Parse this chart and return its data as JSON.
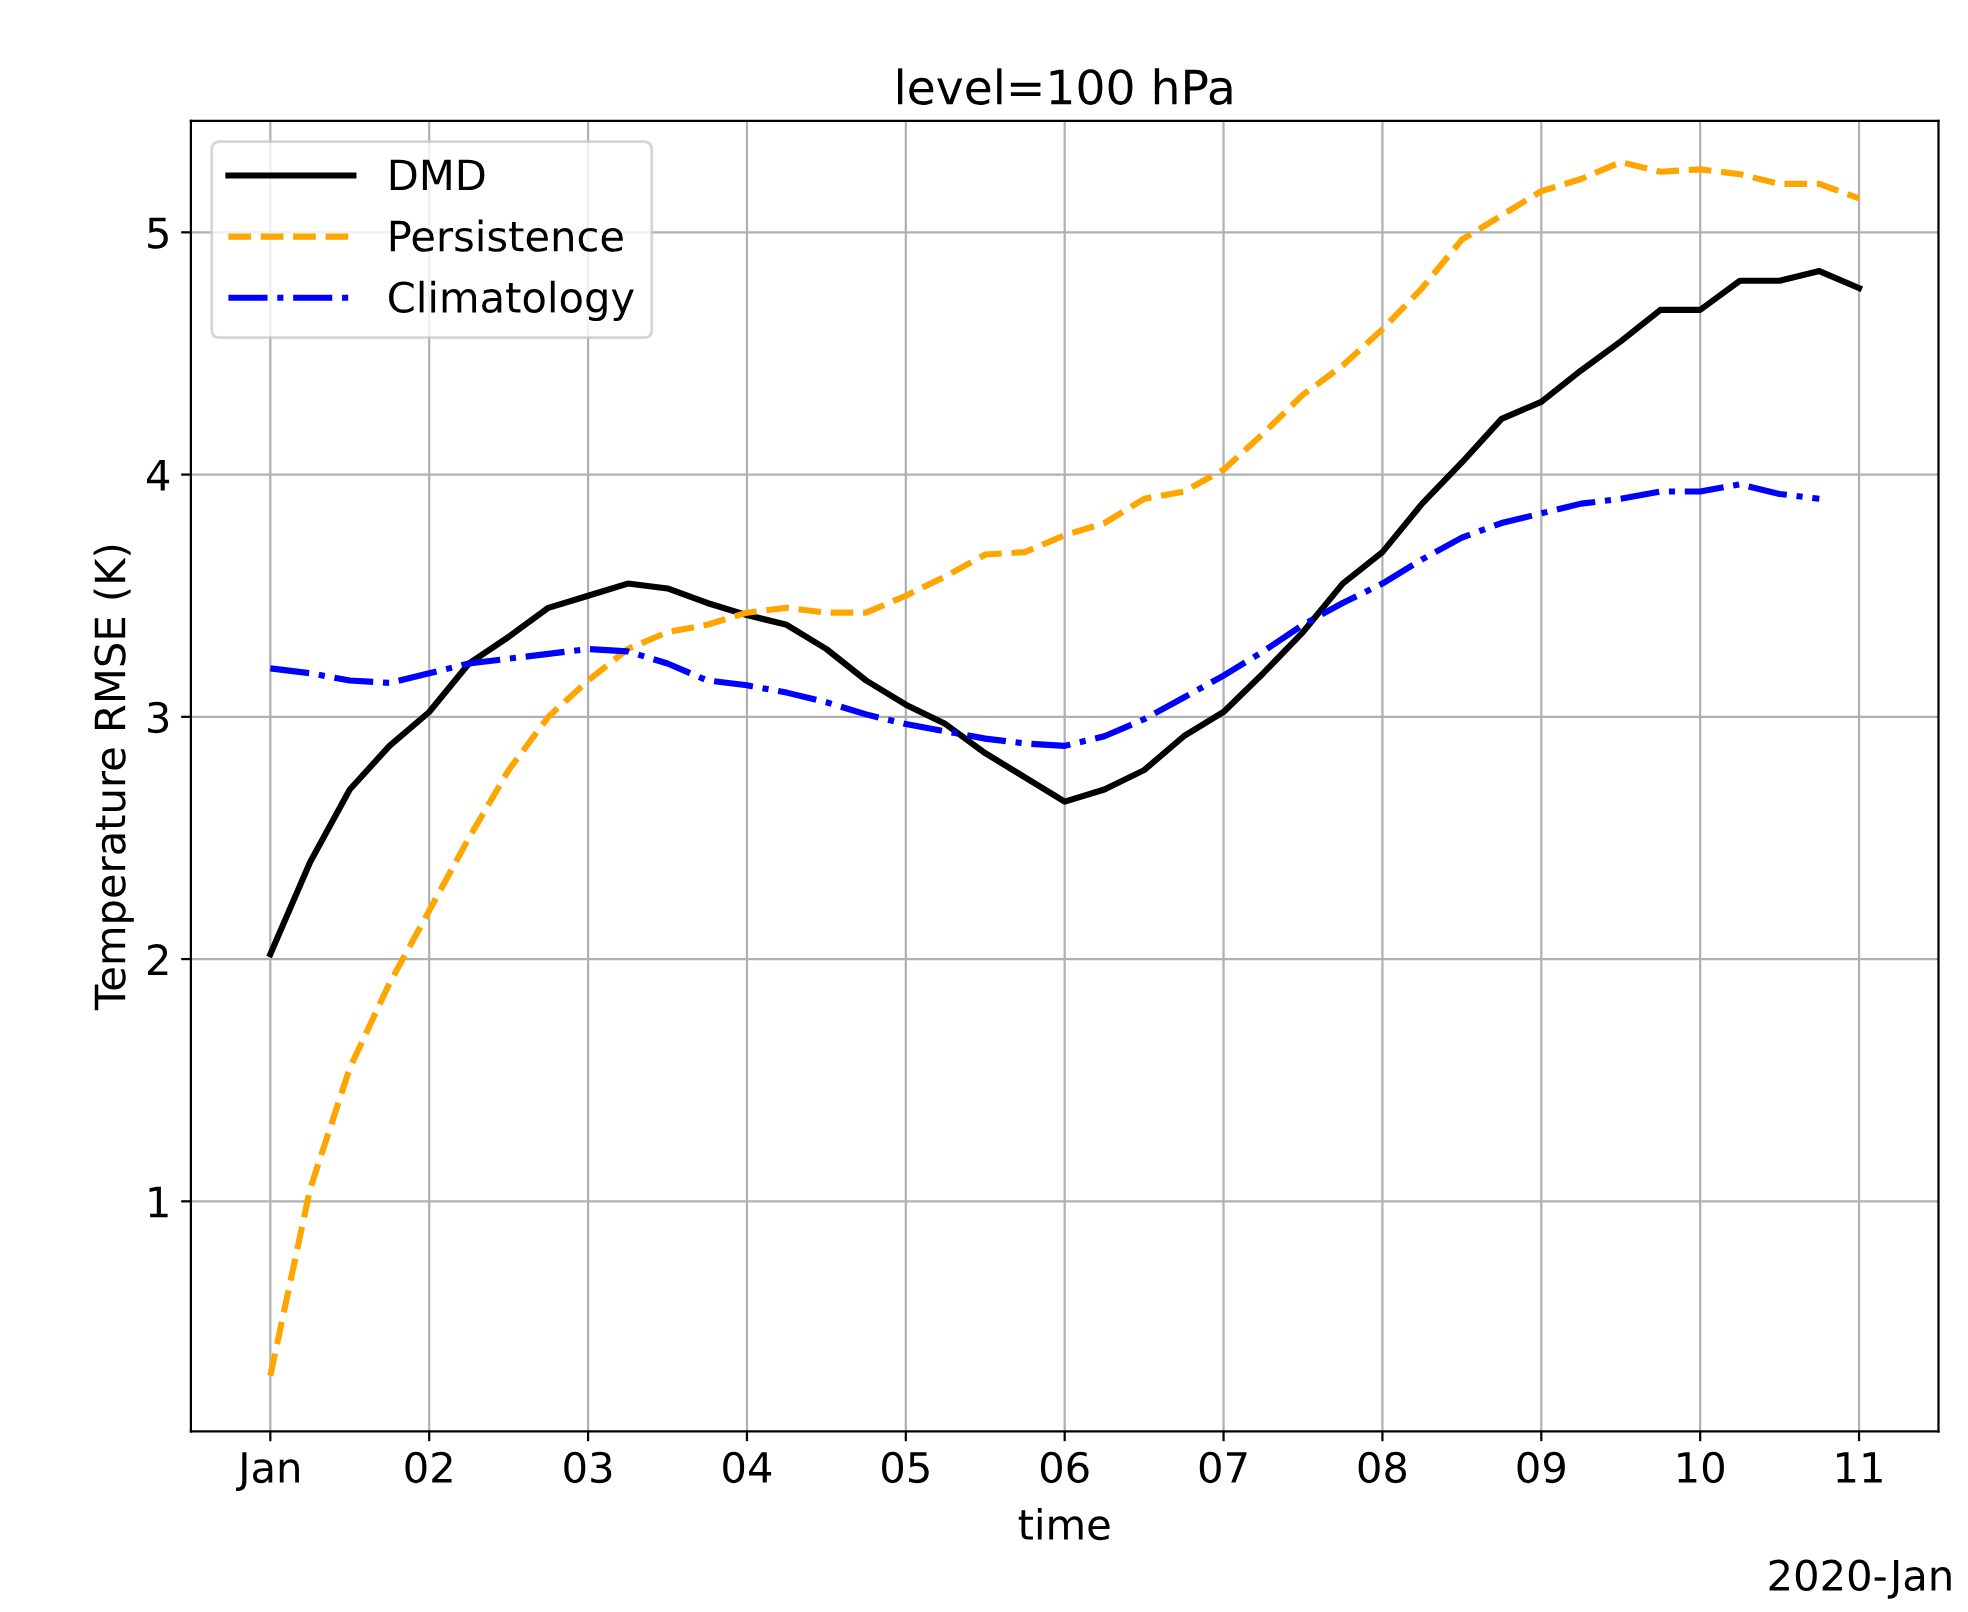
{
  "chart_data": {
    "type": "line",
    "title": "level=100 hPa",
    "xlabel": "time",
    "ylabel": "Temperature RMSE (K)",
    "x": [
      "2020-01-01T00:00",
      "2020-01-01T06:00",
      "2020-01-01T12:00",
      "2020-01-01T18:00",
      "2020-01-02T00:00",
      "2020-01-02T06:00",
      "2020-01-02T12:00",
      "2020-01-02T18:00",
      "2020-01-03T00:00",
      "2020-01-03T06:00",
      "2020-01-03T12:00",
      "2020-01-03T18:00",
      "2020-01-04T00:00",
      "2020-01-04T06:00",
      "2020-01-04T12:00",
      "2020-01-04T18:00",
      "2020-01-05T00:00",
      "2020-01-05T06:00",
      "2020-01-05T12:00",
      "2020-01-05T18:00",
      "2020-01-06T00:00",
      "2020-01-06T06:00",
      "2020-01-06T12:00",
      "2020-01-06T18:00",
      "2020-01-07T00:00",
      "2020-01-07T06:00",
      "2020-01-07T12:00",
      "2020-01-07T18:00",
      "2020-01-08T00:00",
      "2020-01-08T06:00",
      "2020-01-08T12:00",
      "2020-01-08T18:00",
      "2020-01-09T00:00",
      "2020-01-09T06:00",
      "2020-01-09T12:00",
      "2020-01-09T18:00",
      "2020-01-10T00:00",
      "2020-01-10T06:00",
      "2020-01-10T12:00",
      "2020-01-10T18:00",
      "2020-01-11T00:00"
    ],
    "series": [
      {
        "name": "DMD",
        "color": "#000000",
        "line_style": "solid",
        "values": [
          2.02,
          2.4,
          2.7,
          2.88,
          3.02,
          3.22,
          3.33,
          3.45,
          3.5,
          3.55,
          3.53,
          3.47,
          3.42,
          3.38,
          3.28,
          3.15,
          3.05,
          2.97,
          2.85,
          2.75,
          2.65,
          2.7,
          2.78,
          2.92,
          3.02,
          3.18,
          3.35,
          3.55,
          3.68,
          3.88,
          4.05,
          4.23,
          4.3,
          4.43,
          4.55,
          4.68,
          4.68,
          4.8,
          4.8,
          4.84,
          4.77
        ]
      },
      {
        "name": "Persistence",
        "color": "#ffa500",
        "line_style": "dashed",
        "values": [
          0.28,
          1.05,
          1.55,
          1.9,
          2.2,
          2.5,
          2.78,
          3.0,
          3.15,
          3.28,
          3.35,
          3.38,
          3.43,
          3.45,
          3.43,
          3.43,
          3.5,
          3.58,
          3.67,
          3.68,
          3.75,
          3.8,
          3.9,
          3.93,
          4.02,
          4.17,
          4.33,
          4.45,
          4.6,
          4.77,
          4.97,
          5.07,
          5.17,
          5.22,
          5.29,
          5.25,
          5.26,
          5.24,
          5.2,
          5.2,
          5.14
        ]
      },
      {
        "name": "Climatology",
        "color": "#0000ff",
        "line_style": "dashdot",
        "values": [
          3.2,
          3.18,
          3.15,
          3.14,
          3.18,
          3.22,
          3.24,
          3.26,
          3.28,
          3.27,
          3.22,
          3.15,
          3.13,
          3.1,
          3.06,
          3.01,
          2.97,
          2.94,
          2.91,
          2.89,
          2.88,
          2.92,
          2.99,
          3.08,
          3.17,
          3.27,
          3.38,
          3.47,
          3.55,
          3.65,
          3.74,
          3.8,
          3.84,
          3.88,
          3.9,
          3.93,
          3.93,
          3.96,
          3.92,
          3.9,
          null
        ]
      }
    ],
    "xlim": [
      "2019-12-31T12:00",
      "2020-01-11T12:00"
    ],
    "xticks": [
      {
        "value": "2020-01-01",
        "label": "Jan"
      },
      {
        "value": "2020-01-02",
        "label": "02"
      },
      {
        "value": "2020-01-03",
        "label": "03"
      },
      {
        "value": "2020-01-04",
        "label": "04"
      },
      {
        "value": "2020-01-05",
        "label": "05"
      },
      {
        "value": "2020-01-06",
        "label": "06"
      },
      {
        "value": "2020-01-07",
        "label": "07"
      },
      {
        "value": "2020-01-08",
        "label": "08"
      },
      {
        "value": "2020-01-09",
        "label": "09"
      },
      {
        "value": "2020-01-10",
        "label": "10"
      },
      {
        "value": "2020-01-11",
        "label": "11"
      }
    ],
    "ylim": [
      0.05,
      5.46
    ],
    "yticks": [
      1,
      2,
      3,
      4,
      5
    ],
    "annotations": [
      "2020-Jan"
    ],
    "grid": true,
    "legend": "top left",
    "marker": "none"
  }
}
